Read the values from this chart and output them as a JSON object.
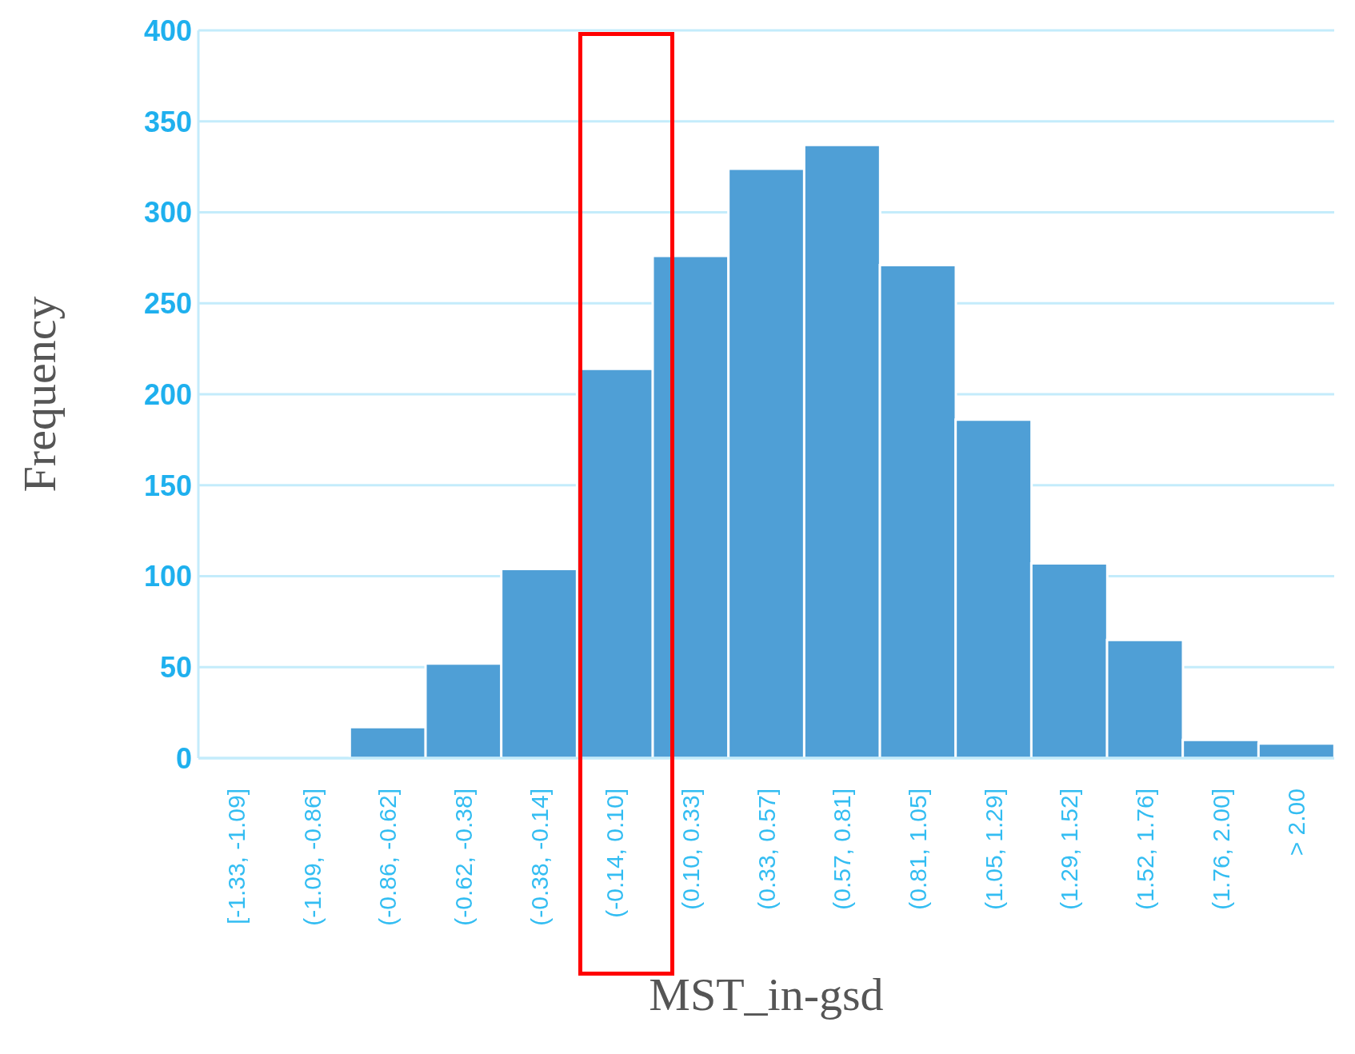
{
  "chart_data": {
    "type": "bar",
    "xlabel": "MST_in-gsd",
    "ylabel": "Frequency",
    "categories": [
      "[-1.33, -1.09]",
      "(-1.09, -0.86]",
      "(-0.86, -0.62]",
      "(-0.62, -0.38]",
      "(-0.38, -0.14]",
      "(-0.14, 0.10]",
      "(0.10, 0.33]",
      "(0.33, 0.57]",
      "(0.57, 0.81]",
      "(0.81, 1.05]",
      "(1.05, 1.29]",
      "(1.29, 1.52]",
      "(1.52, 1.76]",
      "(1.76, 2.00]",
      "> 2.00"
    ],
    "values": [
      0,
      0,
      17,
      52,
      104,
      214,
      276,
      324,
      337,
      271,
      186,
      107,
      65,
      10,
      8
    ],
    "color": "#4f9fd6",
    "ylim": [
      0,
      400
    ],
    "yticks": [
      0,
      50,
      100,
      150,
      200,
      250,
      300,
      350,
      400
    ],
    "grid": "y",
    "legend": false
  }
}
